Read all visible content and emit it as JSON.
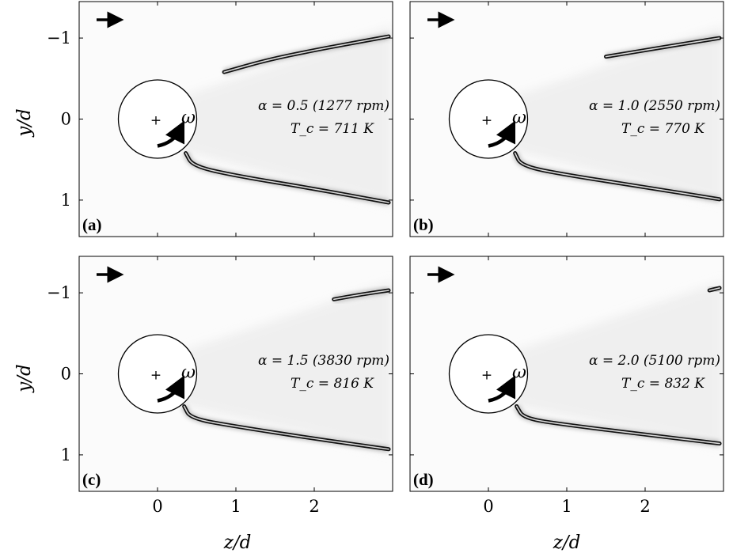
{
  "figure": {
    "xlabel": "z/d",
    "ylabel": "y/d",
    "x_ticks": [
      "0",
      "1",
      "2"
    ],
    "y_ticks": [
      "−1",
      "0",
      "1"
    ]
  },
  "chart_data": [
    {
      "type": "scatter",
      "panel": "(a)",
      "annotation_line1": "α = 0.5 (1277 rpm)",
      "annotation_line2": "T_c = 711 K",
      "rotation_symbol": "ω",
      "alpha": 0.5,
      "rpm": 1277,
      "Tc": 711,
      "xlim": [
        -1.0,
        3.0
      ],
      "ylim": [
        1.45,
        -1.45
      ],
      "cylinder": {
        "center": [
          0,
          0
        ],
        "radius": 0.5
      },
      "upper_flame": [
        [
          0.85,
          -0.58
        ],
        [
          1.4,
          -0.73
        ],
        [
          2.0,
          -0.85
        ],
        [
          2.5,
          -0.94
        ],
        [
          2.95,
          -1.02
        ]
      ],
      "lower_flame": [
        [
          0.36,
          0.42
        ],
        [
          0.45,
          0.58
        ],
        [
          1.0,
          0.7
        ],
        [
          2.0,
          0.86
        ],
        [
          2.95,
          1.03
        ]
      ]
    },
    {
      "type": "scatter",
      "panel": "(b)",
      "annotation_line1": "α = 1.0 (2550 rpm)",
      "annotation_line2": "T_c = 770 K",
      "rotation_symbol": "ω",
      "alpha": 1.0,
      "rpm": 2550,
      "Tc": 770,
      "xlim": [
        -1.0,
        3.0
      ],
      "ylim": [
        1.45,
        -1.45
      ],
      "cylinder": {
        "center": [
          0,
          0
        ],
        "radius": 0.5
      },
      "upper_flame": [
        [
          1.5,
          -0.77
        ],
        [
          2.0,
          -0.85
        ],
        [
          2.5,
          -0.93
        ],
        [
          2.95,
          -1.0
        ]
      ],
      "lower_flame": [
        [
          0.34,
          0.42
        ],
        [
          0.42,
          0.58
        ],
        [
          1.0,
          0.69
        ],
        [
          2.0,
          0.84
        ],
        [
          2.95,
          0.99
        ]
      ]
    },
    {
      "type": "scatter",
      "panel": "(c)",
      "annotation_line1": "α = 1.5 (3830 rpm)",
      "annotation_line2": "T_c = 816 K",
      "rotation_symbol": "ω",
      "alpha": 1.5,
      "rpm": 3830,
      "Tc": 816,
      "xlim": [
        -1.0,
        3.0
      ],
      "ylim": [
        1.45,
        -1.45
      ],
      "cylinder": {
        "center": [
          0,
          0
        ],
        "radius": 0.5
      },
      "upper_flame": [
        [
          2.25,
          -0.92
        ],
        [
          2.6,
          -0.98
        ],
        [
          2.95,
          -1.03
        ]
      ],
      "lower_flame": [
        [
          0.34,
          0.4
        ],
        [
          0.42,
          0.55
        ],
        [
          1.0,
          0.65
        ],
        [
          2.0,
          0.8
        ],
        [
          2.95,
          0.93
        ]
      ]
    },
    {
      "type": "scatter",
      "panel": "(d)",
      "annotation_line1": "α = 2.0 (5100 rpm)",
      "annotation_line2": "T_c = 832 K",
      "rotation_symbol": "ω",
      "alpha": 2.0,
      "rpm": 5100,
      "Tc": 832,
      "xlim": [
        -1.0,
        3.0
      ],
      "ylim": [
        1.45,
        -1.45
      ],
      "cylinder": {
        "center": [
          0,
          0
        ],
        "radius": 0.5
      },
      "upper_flame": [
        [
          2.82,
          -1.03
        ],
        [
          2.95,
          -1.06
        ]
      ],
      "lower_flame": [
        [
          0.36,
          0.4
        ],
        [
          0.45,
          0.55
        ],
        [
          1.0,
          0.63
        ],
        [
          2.0,
          0.75
        ],
        [
          2.95,
          0.86
        ]
      ]
    }
  ]
}
